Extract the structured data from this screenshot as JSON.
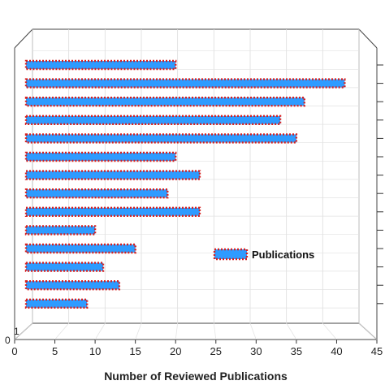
{
  "chart_data": {
    "type": "bar",
    "orientation": "horizontal",
    "title": "",
    "xlabel": "Number of Reviewed Publications",
    "ylabel": "",
    "xlim": [
      0,
      45
    ],
    "xticks": [
      0,
      5,
      10,
      15,
      20,
      25,
      30,
      35,
      40,
      45
    ],
    "ylim_labels": [
      "0",
      "1"
    ],
    "grid": true,
    "projection": "3d-box",
    "legend": {
      "position": "center-right"
    },
    "series": [
      {
        "name": "Publications",
        "face_color": "#2E9BFF",
        "edge_color": "#D62020",
        "values": [
          20,
          41,
          36,
          33,
          35,
          20,
          23,
          19,
          23,
          10,
          15,
          11,
          13,
          9
        ]
      }
    ]
  }
}
